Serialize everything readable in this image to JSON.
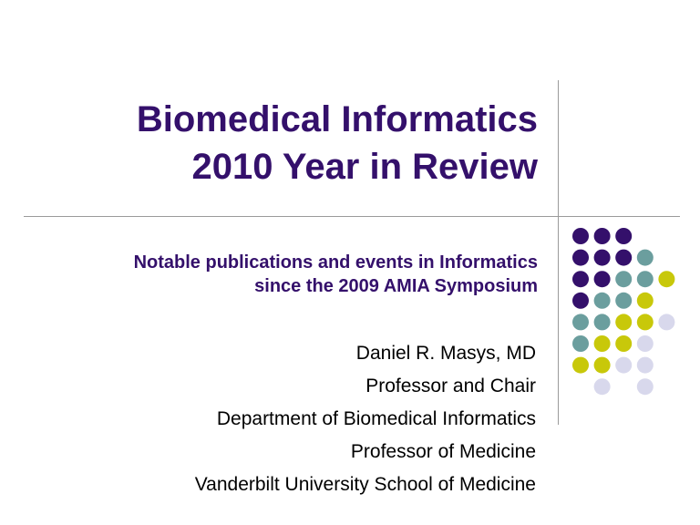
{
  "slide": {
    "title_line1": "Biomedical Informatics",
    "title_line2": "2010 Year in Review",
    "subtitle_line1": "Notable publications and events in Informatics",
    "subtitle_line2": "since the 2009 AMIA Symposium",
    "author_lines": [
      "Daniel R. Masys, MD",
      "Professor and Chair",
      "Department of Biomedical Informatics",
      "Professor of Medicine",
      "Vanderbilt University School of Medicine"
    ]
  },
  "colors": {
    "purple": "#34106b",
    "teal": "#6b9e9e",
    "olive": "#c8c80a",
    "lavender": "#d8d8ec"
  },
  "dot_grid": [
    [
      "purple",
      "purple",
      "purple",
      "",
      ""
    ],
    [
      "purple",
      "purple",
      "purple",
      "teal",
      ""
    ],
    [
      "purple",
      "purple",
      "teal",
      "teal",
      "olive"
    ],
    [
      "purple",
      "teal",
      "teal",
      "olive",
      ""
    ],
    [
      "teal",
      "teal",
      "olive",
      "olive",
      "lavender"
    ],
    [
      "teal",
      "olive",
      "olive",
      "lavender",
      ""
    ],
    [
      "olive",
      "olive",
      "lavender",
      "lavender",
      ""
    ],
    [
      "",
      "lavender",
      "",
      "lavender",
      ""
    ]
  ]
}
